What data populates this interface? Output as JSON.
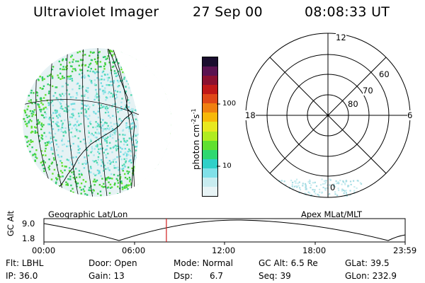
{
  "header": {
    "title": "Ultraviolet Imager",
    "date": "27 Sep 00",
    "time": "08:08:33 UT"
  },
  "colorbar": {
    "unit_label": "photon cm",
    "unit_exp1": "-2",
    "unit_mid": "s",
    "unit_exp2": "-1",
    "ticks": [
      "100",
      "10"
    ],
    "colors": [
      "#1a0d2e",
      "#5a1250",
      "#8a1030",
      "#c01818",
      "#e04818",
      "#f08010",
      "#f8b808",
      "#e8e820",
      "#b0ec20",
      "#60e030",
      "#30d870",
      "#30d0c8",
      "#80e0e8",
      "#c8ecf0",
      "#e8f4f6"
    ]
  },
  "left_panel": {
    "label": "Geographic Lat/Lon"
  },
  "right_panel": {
    "label": "Apex MLat/MLT",
    "mlt_labels": {
      "top": "12",
      "left": "18",
      "right": "6",
      "bottom": "0"
    },
    "lat_labels": [
      "60",
      "70",
      "80"
    ]
  },
  "altitude_strip": {
    "ylabel": "GC Alt",
    "ymax_label": "9.0",
    "ymin_label": "1.8",
    "time_ticks": [
      "00:00",
      "06:00",
      "12:00",
      "18:00",
      "23:59"
    ],
    "marker_color": "#d02020",
    "current_time_fraction": 0.339
  },
  "status": {
    "filter": {
      "label": "Flt:",
      "value": "LBHL"
    },
    "ip": {
      "label": "IP:",
      "value": "36.0"
    },
    "door": {
      "label": "Door:",
      "value": "Open"
    },
    "gain": {
      "label": "Gain:",
      "value": "13"
    },
    "mode": {
      "label": "Mode:",
      "value": "Normal"
    },
    "dsp": {
      "label": "Dsp:",
      "value": "6.7"
    },
    "gc_alt": {
      "label": "GC Alt:",
      "value": "6.5 Re"
    },
    "seq": {
      "label": "Seq:",
      "value": "39"
    },
    "glat": {
      "label": "GLat:",
      "value": "39.5"
    },
    "glon": {
      "label": "GLon:",
      "value": "232.9"
    }
  }
}
